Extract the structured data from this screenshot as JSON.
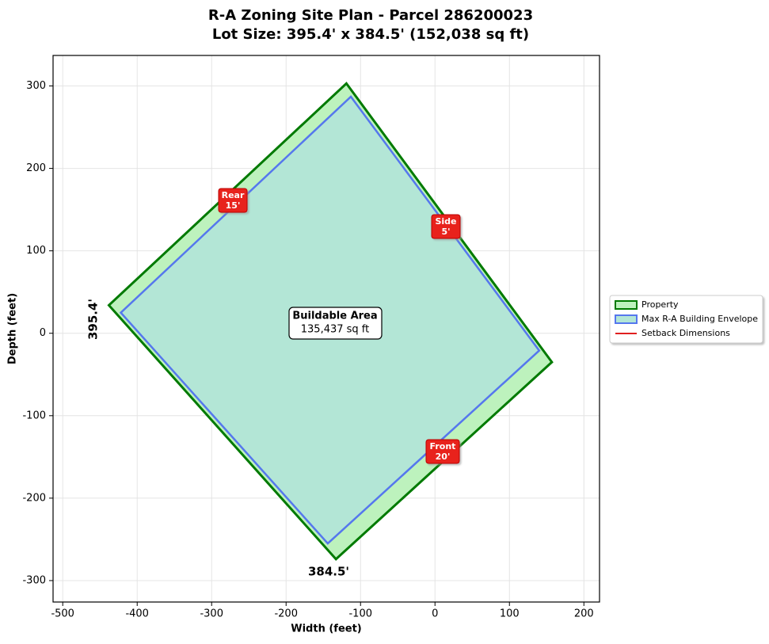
{
  "chart_data": {
    "type": "polygon",
    "title": "R-A Zoning Site Plan - Parcel 286200023",
    "subtitle": "Lot Size: 395.4' x 384.5' (152,038 sq ft)",
    "xlabel": "Width (feet)",
    "ylabel": "Depth (feet)",
    "xlim": [
      -513,
      221
    ],
    "ylim": [
      -326,
      337
    ],
    "xticks": [
      -500,
      -400,
      -300,
      -200,
      -100,
      0,
      100,
      200
    ],
    "yticks": [
      -300,
      -200,
      -100,
      0,
      100,
      200,
      300
    ],
    "grid": true,
    "legend": "right",
    "series": [
      {
        "name": "Property",
        "color": "#007a00",
        "fill": "#bdf2bd",
        "x": [
          -119,
          157,
          -133,
          -438
        ],
        "y": [
          303,
          -35,
          -274,
          34
        ]
      },
      {
        "name": "Max R-A Building Envelope",
        "color": "#5577ee",
        "fill": "#b3e6d6",
        "x": [
          -113,
          140,
          -144,
          -422
        ],
        "y": [
          287,
          -21,
          -255,
          25
        ]
      },
      {
        "name": "Setback Dimensions",
        "color": "#e02020"
      }
    ],
    "setbacks": [
      {
        "label": "Rear",
        "value": "15'"
      },
      {
        "label": "Side",
        "value": "5'"
      },
      {
        "label": "Front",
        "value": "20'"
      }
    ],
    "area_label": {
      "label": "Buildable Area",
      "value": "135,437 sq ft"
    },
    "dimensions": [
      "395.4'",
      "384.5'"
    ]
  }
}
